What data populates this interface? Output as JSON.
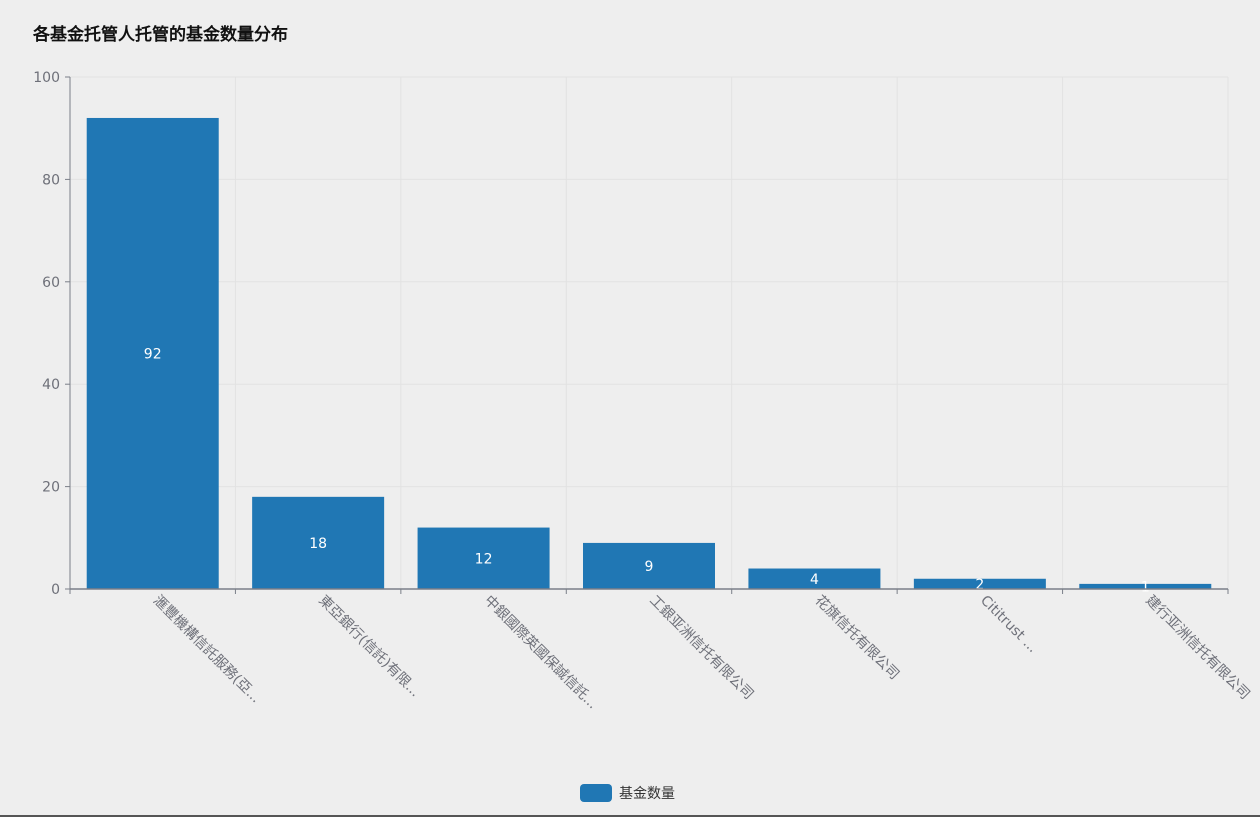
{
  "chart_data": {
    "type": "bar",
    "title": "各基金托管人托管的基金数量分布",
    "categories": [
      "滙豐機構信託服務(亞...",
      "東亞銀行(信託)有限...",
      "中銀國際英國保誠信託...",
      "工銀亚洲信托有限公司",
      "花旗信托有限公司",
      "Cititrust ...",
      "建行亚洲信托有限公司"
    ],
    "series": [
      {
        "name": "基金数量",
        "values": [
          92,
          18,
          12,
          9,
          4,
          2,
          1
        ]
      }
    ],
    "ylim": [
      0,
      100
    ],
    "yticks": [
      0,
      20,
      40,
      60,
      80,
      100
    ],
    "xlabel": "",
    "ylabel": "",
    "grid": true,
    "legend_position": "bottom-center",
    "bar_color": "#2077b4"
  }
}
